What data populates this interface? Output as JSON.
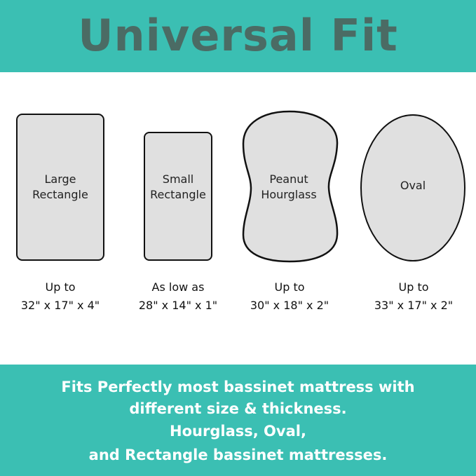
{
  "header": {
    "title": "Universal Fit"
  },
  "colors": {
    "banner": "#3bbfb3",
    "title": "#4b6b64",
    "shape_fill": "#e0e0e0",
    "shape_stroke": "#111111"
  },
  "shapes": [
    {
      "name": "Large Rectangle",
      "label_lines": [
        "Large",
        "Rectangle"
      ],
      "dim_lines": [
        "Up to",
        "32\" x 17\" x 4\""
      ]
    },
    {
      "name": "Small Rectangle",
      "label_lines": [
        "Small",
        "Rectangle"
      ],
      "dim_lines": [
        "As low as",
        "28\" x 14\" x 1\""
      ]
    },
    {
      "name": "Peanut Hourglass",
      "label_lines": [
        "Peanut",
        "Hourglass"
      ],
      "dim_lines": [
        "Up to",
        "30\" x 18\" x 2\""
      ]
    },
    {
      "name": "Oval",
      "label_lines": [
        "Oval"
      ],
      "dim_lines": [
        "Up to",
        "33\" x 17\" x 2\""
      ]
    }
  ],
  "footer": {
    "lines": [
      "Fits Perfectly most bassinet mattress with",
      "different size & thickness.",
      "Hourglass, Oval,",
      "and Rectangle bassinet mattresses."
    ]
  }
}
